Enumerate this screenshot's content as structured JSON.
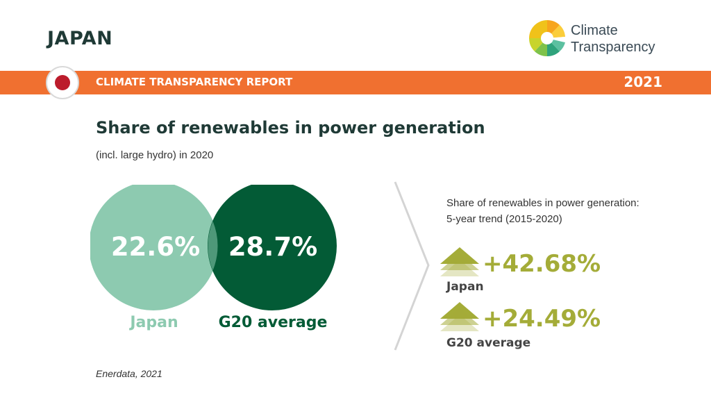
{
  "header": {
    "country": "JAPAN",
    "logo_line1": "Climate",
    "logo_line2": "Transparency",
    "report_label": "CLIMATE TRANSPARENCY REPORT",
    "year": "2021"
  },
  "chart_data": [
    {
      "type": "venn",
      "title": "Share of renewables in power generation",
      "subtitle": "(incl. large hydro) in 2020",
      "series": [
        {
          "name": "Japan",
          "value": 22.6,
          "label": "22.6%",
          "color": "#8dcab0"
        },
        {
          "name": "G20 average",
          "value": 28.7,
          "label": "28.7%",
          "color": "#035b36"
        }
      ]
    },
    {
      "type": "trend",
      "title_line1": "Share of renewables in power generation:",
      "title_line2": "5-year trend (2015-2020)",
      "series": [
        {
          "name": "Japan",
          "value": 42.68,
          "label": "+42.68%",
          "direction": "up",
          "color": "#a4ac38"
        },
        {
          "name": "G20 average",
          "value": 24.49,
          "label": "+24.49%",
          "direction": "up",
          "color": "#a4ac38"
        }
      ]
    }
  ],
  "source": "Enerdata, 2021"
}
